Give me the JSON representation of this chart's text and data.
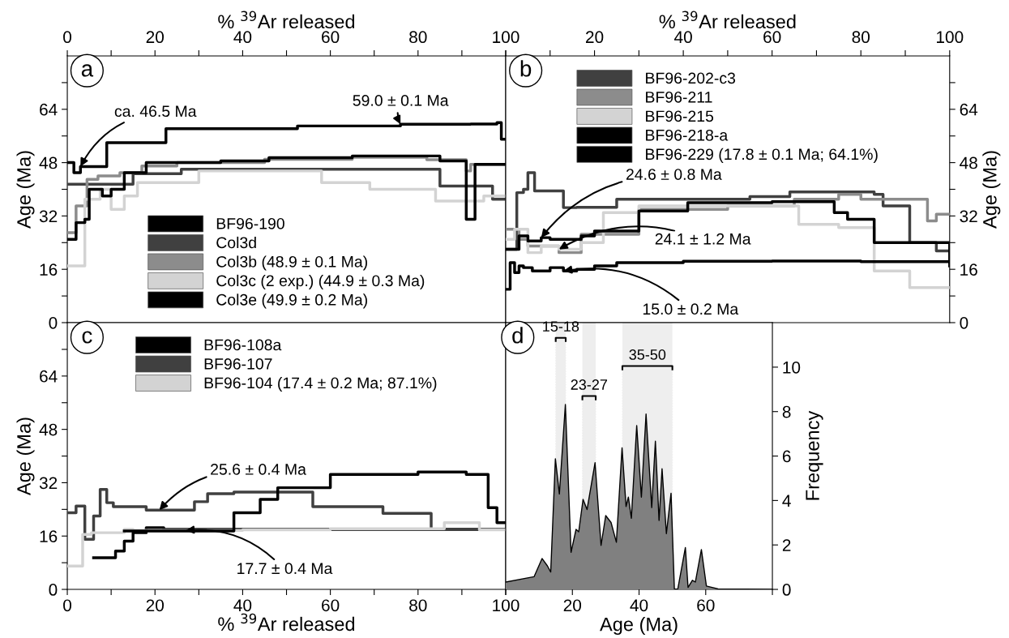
{
  "chart_data": [
    {
      "type": "step",
      "xlabel": "% $^{39}$Ar released",
      "ylabel": "Age (Ma)",
      "xlim": [
        0,
        100
      ],
      "ylim": [
        0,
        80
      ],
      "xticks": [
        0,
        {
          "value": 10,
          "label": null
        },
        20,
        {
          "value": 30,
          "label": null
        },
        40,
        {
          "value": 50,
          "label": null
        },
        60,
        {
          "value": 70,
          "label": null
        },
        80,
        {
          "value": 90,
          "label": null
        },
        100
      ],
      "yticks": [
        0,
        {
          "value": 8,
          "label": null
        },
        16,
        {
          "value": 24,
          "label": null
        },
        32,
        {
          "value": 40,
          "label": null
        },
        48,
        {
          "value": 56,
          "label": null
        },
        64,
        {
          "value": 72,
          "label": null
        }
      ],
      "legend": "bottom",
      "line_style": "solid",
      "marker": "none",
      "annotations": [
        "a",
        {
          "text": "ca. 46.5 Ma",
          "x": 3,
          "y": 46.8
        },
        {
          "text": "59.0 ± 0.1 Ma",
          "x": 76,
          "y": 59.5
        }
      ],
      "series": [
        {
          "name": "BF96-190",
          "color": "#000000",
          "x": [
            0,
            1.5,
            3,
            9,
            22.5,
            52.5,
            76,
            92,
            98,
            99,
            100
          ],
          "values": [
            48,
            45,
            46.8,
            54,
            58.2,
            59,
            59.5,
            59.6,
            60,
            55,
            55
          ]
        },
        {
          "name": "Col3d",
          "color": "#404040",
          "x": [
            0,
            15,
            26,
            85,
            97,
            100
          ],
          "values": [
            41.5,
            44.7,
            46,
            41,
            37,
            37
          ]
        },
        {
          "name": "Col3b (48.9 ± 0.1 Ma)",
          "color": "#8c8c8c",
          "x": [
            0,
            2,
            4.5,
            7,
            12,
            17,
            25,
            45,
            65,
            82,
            91,
            92,
            100
          ],
          "values": [
            27,
            35,
            43,
            44,
            45,
            47,
            48,
            49,
            49.6,
            48.9,
            45.5,
            47.5,
            47.5
          ]
        },
        {
          "name": "Col3c (2 exp.) (44.9 ± 0.3 Ma)",
          "color": "#d3d3d3",
          "x": [
            0,
            4,
            7.5,
            10,
            13,
            16,
            30,
            58,
            69,
            84,
            95,
            100
          ],
          "values": [
            17,
            37,
            40,
            34,
            38,
            42,
            45.5,
            42,
            40,
            36.5,
            38,
            38
          ]
        },
        {
          "name": "Col3e (49.9 ± 0.2 Ma)",
          "color": "#000000",
          "x": [
            0,
            2,
            4,
            5,
            8,
            10,
            13,
            18,
            35,
            46,
            65,
            85,
            91,
            93,
            100
          ],
          "values": [
            25,
            30,
            31,
            40,
            38,
            40,
            45,
            48,
            48.5,
            49.5,
            50,
            48.5,
            31,
            47.5,
            47.5
          ]
        }
      ]
    },
    {
      "type": "step",
      "xlabel": "% $^{39}$Ar released",
      "ylabel": "Age (Ma)",
      "xlim": [
        0,
        100
      ],
      "ylim": [
        0,
        80
      ],
      "xticks": [
        {
          "value": 0,
          "label": null
        },
        {
          "value": 10,
          "label": null
        },
        20,
        {
          "value": 30,
          "label": null
        },
        40,
        {
          "value": 50,
          "label": null
        },
        60,
        {
          "value": 70,
          "label": null
        },
        80,
        {
          "value": 90,
          "label": null
        },
        100
      ],
      "yticks": [
        0,
        {
          "value": 8,
          "label": null
        },
        16,
        {
          "value": 24,
          "label": null
        },
        32,
        {
          "value": 40,
          "label": null
        },
        48,
        {
          "value": 56,
          "label": null
        },
        64,
        {
          "value": 72,
          "label": null
        }
      ],
      "legend": "top",
      "line_style": "solid",
      "marker": "none",
      "annotations": [
        "b",
        {
          "text": "24.6 ± 0.8 Ma",
          "x": 8,
          "y": 25.5
        },
        {
          "text": "24.1 ± 1.2 Ma",
          "x": 12,
          "y": 22
        },
        {
          "text": "15.0 ± 0.2 Ma",
          "x": 13,
          "y": 15.5
        }
      ],
      "series": [
        {
          "name": "BF96-202-c3",
          "color": "#404040",
          "x": [
            0,
            2.5,
            4,
            5,
            6.5,
            13,
            16,
            25,
            55,
            64,
            83,
            85,
            91,
            97,
            100
          ],
          "values": [
            22,
            39,
            40,
            45,
            39.5,
            34.5,
            34.6,
            37,
            37.8,
            39.2,
            38.5,
            35,
            24,
            21.5,
            21.5
          ]
        },
        {
          "name": "BF96-211",
          "color": "#8c8c8c",
          "x": [
            0,
            3,
            5,
            12,
            17,
            30,
            50,
            65,
            75,
            80,
            95,
            97,
            100
          ],
          "values": [
            28,
            25,
            23,
            21,
            26.5,
            34,
            35,
            37,
            38.5,
            37,
            30.5,
            32.5,
            32.5
          ]
        },
        {
          "name": "BF96-215",
          "color": "#d3d3d3",
          "x": [
            0,
            2,
            5,
            8,
            12,
            17,
            22,
            30,
            50,
            66,
            75,
            83,
            91,
            100
          ],
          "values": [
            25,
            28,
            21,
            23,
            22,
            24,
            33,
            35,
            35,
            29.5,
            28.5,
            15.5,
            10.5,
            10.5
          ]
        },
        {
          "name": "BF96-218-a",
          "color": "#000000",
          "x": [
            0,
            3,
            5,
            8,
            10,
            17,
            20,
            30,
            41,
            60,
            74,
            77,
            83,
            100
          ],
          "values": [
            22,
            26,
            24.5,
            25.5,
            25,
            26,
            27.5,
            33.5,
            36,
            36.3,
            33,
            31,
            24,
            17
          ]
        },
        {
          "name": "BF96-229 (17.8 ± 0.1 Ma; 64.1%)",
          "color": "#000000",
          "x": [
            0,
            1,
            2,
            3,
            4,
            6,
            10,
            13,
            16,
            20,
            25,
            40,
            60,
            80,
            100
          ],
          "values": [
            10,
            18,
            15,
            17,
            16.5,
            15.5,
            16.5,
            15.5,
            16,
            17,
            18,
            18.4,
            18.5,
            18.3,
            18.2
          ]
        }
      ]
    },
    {
      "type": "step",
      "xlabel": "% $^{39}$Ar released",
      "ylabel": "Age (Ma)",
      "xlim": [
        0,
        100
      ],
      "ylim": [
        0,
        80
      ],
      "xticks": [
        0,
        {
          "value": 10,
          "label": null
        },
        20,
        {
          "value": 30,
          "label": null
        },
        40,
        {
          "value": 50,
          "label": null
        },
        60,
        {
          "value": 70,
          "label": null
        },
        80,
        {
          "value": 90,
          "label": null
        },
        100
      ],
      "yticks": [
        0,
        {
          "value": 8,
          "label": null
        },
        16,
        {
          "value": 24,
          "label": null
        },
        32,
        {
          "value": 40,
          "label": null
        },
        48,
        {
          "value": 56,
          "label": null
        },
        64,
        {
          "value": 72,
          "label": null
        }
      ],
      "legend": "top",
      "line_style": "solid",
      "marker": "none",
      "annotations": [
        "c",
        {
          "text": "25.6 ± 0.4 Ma",
          "x": 21,
          "y": 23.8
        },
        {
          "text": "17.7 ± 0.4 Ma",
          "x": 27,
          "y": 17.7
        }
      ],
      "series": [
        {
          "name": "BF96-108a",
          "color": "#000000",
          "x": [
            6,
            8,
            11,
            13,
            15,
            18,
            22,
            40,
            100
          ],
          "values": [
            9.5,
            9.5,
            11.5,
            14.5,
            17,
            18.5,
            18,
            18,
            18
          ]
        },
        {
          "name": "BF96-107",
          "color": "#404040",
          "x": [
            0,
            2,
            4,
            6,
            7.5,
            9,
            10.5,
            18,
            29,
            32,
            38,
            56,
            72,
            83,
            100
          ],
          "values": [
            23,
            25,
            15,
            22,
            30,
            26,
            24.8,
            23.8,
            26.3,
            28.7,
            29.2,
            24.8,
            22.8,
            18,
            18
          ]
        },
        {
          "name": "BF96-104 (17.4 ± 0.2 Ma; 87.1%)",
          "color": "#d3d3d3",
          "x": [
            0,
            3.5,
            5.5,
            13,
            15,
            17,
            40,
            60,
            80,
            86,
            94,
            100
          ],
          "values": [
            7,
            16.5,
            17,
            18,
            17.7,
            17.7,
            17.9,
            18.2,
            18.2,
            20,
            17.9,
            17.9
          ]
        },
        {
          "color": "#000000",
          "x": [
            13,
            38,
            44,
            48,
            60,
            80,
            91,
            96,
            98,
            100
          ],
          "values": [
            17.5,
            23,
            27,
            30.5,
            34.5,
            35.2,
            34.5,
            24.5,
            20,
            20
          ]
        }
      ]
    },
    {
      "type": "area",
      "xlabel": "Age (Ma)",
      "ylabel": "Frequency",
      "xlim": [
        0,
        80
      ],
      "ylim": [
        0,
        12
      ],
      "xticks": [
        {
          "value": 0,
          "label": null
        },
        20,
        40,
        60,
        {
          "value": 80,
          "label": null
        }
      ],
      "yticks": [
        0,
        2,
        4,
        6,
        8,
        10
      ],
      "annotations": [
        "d"
      ],
      "bands": [
        {
          "axis": "x",
          "from": 15,
          "to": 18,
          "label": "15-18",
          "color": "#eeeeee"
        },
        {
          "axis": "x",
          "from": 23,
          "to": 27,
          "label": "23-27",
          "color": "#eeeeee"
        },
        {
          "axis": "x",
          "from": 35,
          "to": 50,
          "label": "35-50",
          "color": "#eeeeee"
        }
      ],
      "series": [
        {
          "color": "#808080",
          "x": [
            0,
            8.5,
            10.9,
            12.5,
            13.5,
            14.9,
            16.1,
            17.9,
            19.6,
            21.1,
            21.9,
            23.2,
            24.4,
            26.8,
            28.6,
            30,
            31.6,
            33.2,
            34.9,
            36.1,
            36.8,
            37.7,
            39.3,
            40.7,
            42.1,
            43.8,
            44.9,
            46,
            46.9,
            48.2,
            49.6,
            50.6,
            51.6,
            53.9,
            54.7,
            56,
            56.9,
            58.7,
            60.2,
            63.7,
            79.8
          ],
          "values": [
            0.33,
            0.57,
            1.39,
            1.06,
            0.78,
            5.88,
            4.29,
            8.32,
            1.67,
            2.7,
            2.59,
            4.05,
            3.59,
            5.7,
            1.98,
            3.32,
            3.01,
            2.12,
            6.37,
            3.73,
            4.15,
            3.2,
            7.37,
            4.15,
            7.89,
            3.68,
            6.67,
            3.1,
            5.43,
            2.51,
            4.33,
            0.02,
            0,
            1.88,
            0.09,
            0.41,
            0.33,
            1.79,
            0.15,
            0.02,
            0
          ]
        }
      ]
    }
  ]
}
